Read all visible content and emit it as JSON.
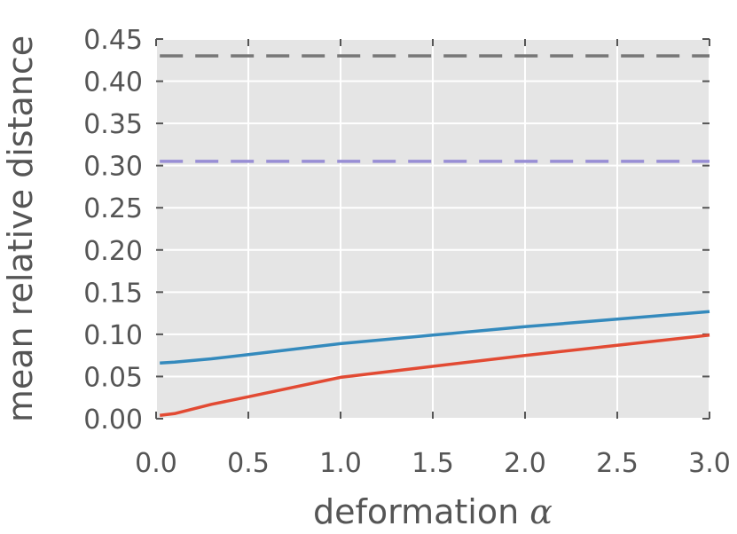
{
  "chart_data": {
    "type": "line",
    "title": "",
    "xlabel": "deformation",
    "xlabel_symbol": "α",
    "ylabel": "mean relative distance",
    "xlim": [
      0.0,
      3.0
    ],
    "ylim": [
      0.0,
      0.45
    ],
    "xticks": [
      "0.0",
      "0.5",
      "1.0",
      "1.5",
      "2.0",
      "2.5",
      "3.0"
    ],
    "yticks": [
      "0.00",
      "0.05",
      "0.10",
      "0.15",
      "0.20",
      "0.25",
      "0.30",
      "0.35",
      "0.40",
      "0.45"
    ],
    "grid": true,
    "legend": "none",
    "background": "#e5e5e5",
    "series": [
      {
        "color": "#348abd",
        "style": "solid",
        "x": [
          0.02,
          0.1,
          0.3,
          0.5,
          1.0,
          1.5,
          2.0,
          2.5,
          3.0
        ],
        "y": [
          0.066,
          0.067,
          0.071,
          0.076,
          0.089,
          0.099,
          0.109,
          0.118,
          0.127
        ]
      },
      {
        "color": "#e24a33",
        "style": "solid",
        "x": [
          0.02,
          0.1,
          0.3,
          0.5,
          1.0,
          1.5,
          2.0,
          2.5,
          3.0
        ],
        "y": [
          0.004,
          0.006,
          0.017,
          0.026,
          0.049,
          0.062,
          0.075,
          0.087,
          0.099
        ]
      },
      {
        "color": "#777777",
        "style": "dashed",
        "x": [
          0.02,
          3.0
        ],
        "y": [
          0.43,
          0.43
        ]
      },
      {
        "color": "#988ed5",
        "style": "dashed",
        "x": [
          0.02,
          3.0
        ],
        "y": [
          0.305,
          0.305
        ]
      }
    ]
  }
}
